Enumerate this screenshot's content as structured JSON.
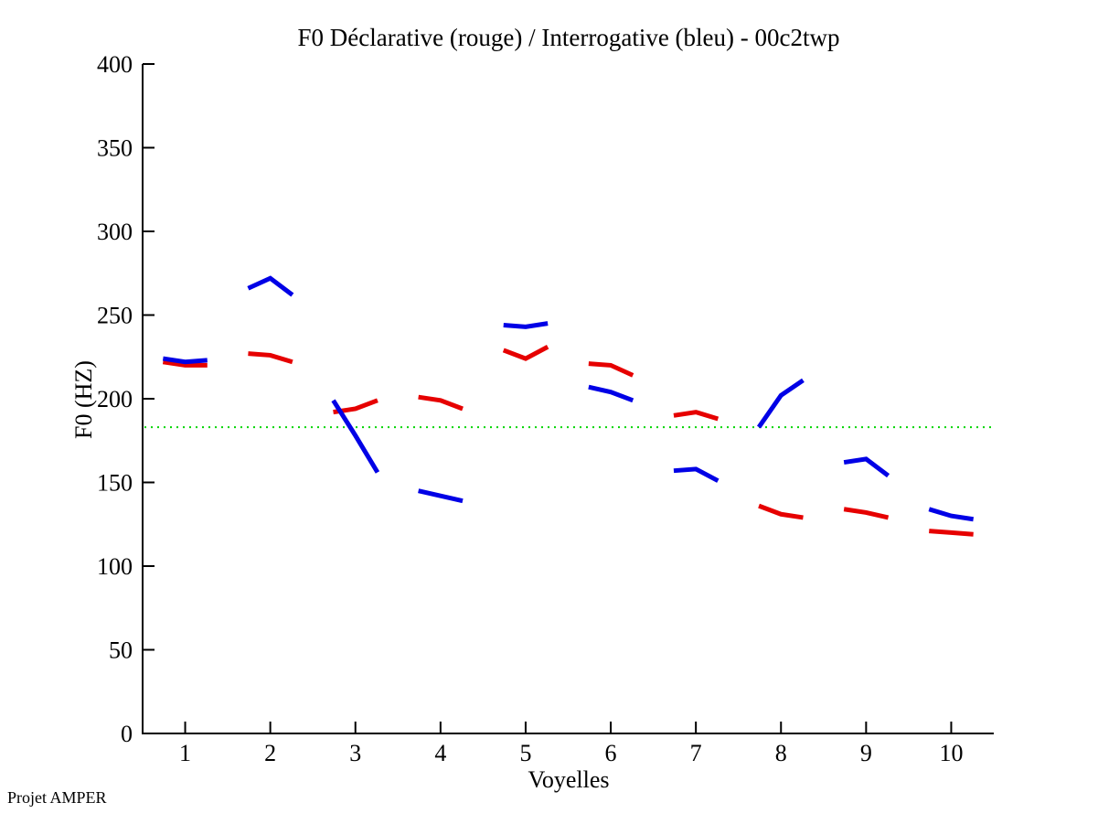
{
  "footer": {
    "text": "Projet AMPER"
  },
  "chart_data": {
    "type": "line",
    "title": "F0 Déclarative (rouge) / Interrogative (bleu) - 00c2twp",
    "xlabel": "Voyelles",
    "ylabel": "F0 (HZ)",
    "xlim": [
      0.5,
      10.5
    ],
    "ylim": [
      0,
      400
    ],
    "xticks": [
      1,
      2,
      3,
      4,
      5,
      6,
      7,
      8,
      9,
      10
    ],
    "yticks": [
      0,
      50,
      100,
      150,
      200,
      250,
      300,
      350,
      400
    ],
    "grid": false,
    "legend_position": "none",
    "axis_color": "#000000",
    "reference_line": {
      "y": 183,
      "color": "#00d500",
      "style": "dotted"
    },
    "segment_x_offsets": [
      -0.26,
      0,
      0.26
    ],
    "series": [
      {
        "name": "Déclarative",
        "color_label": "rouge",
        "color": "#e60000",
        "segments": [
          {
            "vowel": 1,
            "f0": [
              222,
              220,
              220
            ]
          },
          {
            "vowel": 2,
            "f0": [
              227,
              226,
              222
            ]
          },
          {
            "vowel": 3,
            "f0": [
              192,
              194,
              199
            ]
          },
          {
            "vowel": 4,
            "f0": [
              201,
              199,
              194
            ]
          },
          {
            "vowel": 5,
            "f0": [
              229,
              224,
              231
            ]
          },
          {
            "vowel": 6,
            "f0": [
              221,
              220,
              214
            ]
          },
          {
            "vowel": 7,
            "f0": [
              190,
              192,
              188
            ]
          },
          {
            "vowel": 8,
            "f0": [
              136,
              131,
              129
            ]
          },
          {
            "vowel": 9,
            "f0": [
              134,
              132,
              129
            ]
          },
          {
            "vowel": 10,
            "f0": [
              121,
              120,
              119
            ]
          }
        ]
      },
      {
        "name": "Interrogative",
        "color_label": "bleu",
        "color": "#0000e6",
        "segments": [
          {
            "vowel": 1,
            "f0": [
              224,
              222,
              223
            ]
          },
          {
            "vowel": 2,
            "f0": [
              266,
              272,
              262
            ]
          },
          {
            "vowel": 3,
            "f0": [
              199,
              178,
              156
            ]
          },
          {
            "vowel": 4,
            "f0": [
              145,
              142,
              139
            ]
          },
          {
            "vowel": 5,
            "f0": [
              244,
              243,
              245
            ]
          },
          {
            "vowel": 6,
            "f0": [
              207,
              204,
              199
            ]
          },
          {
            "vowel": 7,
            "f0": [
              157,
              158,
              151
            ]
          },
          {
            "vowel": 8,
            "f0": [
              183,
              202,
              211
            ]
          },
          {
            "vowel": 9,
            "f0": [
              162,
              164,
              154
            ]
          },
          {
            "vowel": 10,
            "f0": [
              134,
              130,
              128
            ]
          }
        ]
      }
    ]
  }
}
